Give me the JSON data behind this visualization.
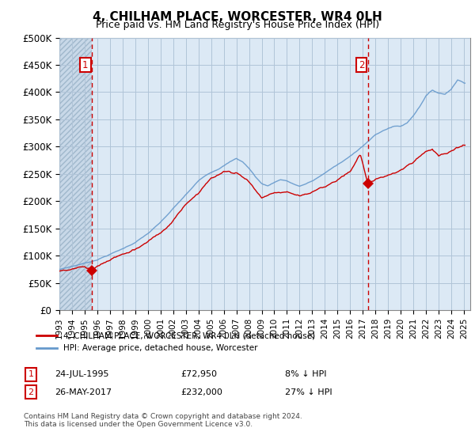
{
  "title": "4, CHILHAM PLACE, WORCESTER, WR4 0LH",
  "subtitle": "Price paid vs. HM Land Registry's House Price Index (HPI)",
  "legend_label_red": "4, CHILHAM PLACE, WORCESTER, WR4 0LH (detached house)",
  "legend_label_blue": "HPI: Average price, detached house, Worcester",
  "transaction1_date": "24-JUL-1995",
  "transaction1_price": "£72,950",
  "transaction1_hpi": "8% ↓ HPI",
  "transaction2_date": "26-MAY-2017",
  "transaction2_price": "£232,000",
  "transaction2_hpi": "27% ↓ HPI",
  "footer": "Contains HM Land Registry data © Crown copyright and database right 2024.\nThis data is licensed under the Open Government Licence v3.0.",
  "ylim": [
    0,
    500000
  ],
  "yticks": [
    0,
    50000,
    100000,
    150000,
    200000,
    250000,
    300000,
    350000,
    400000,
    450000,
    500000
  ],
  "background_color": "#ffffff",
  "plot_bg_color": "#dce9f5",
  "grid_color": "#b0c4d8",
  "hpi_color": "#6699cc",
  "price_color": "#cc0000",
  "vline_color": "#cc0000",
  "marker1_x": 1995.56,
  "marker1_y": 72950,
  "marker2_x": 2017.4,
  "marker2_y": 232000,
  "vline1_x": 1995.56,
  "vline2_x": 2017.4,
  "xmin": 1993,
  "xmax": 2025.5,
  "xticks": [
    1993,
    1994,
    1995,
    1996,
    1997,
    1998,
    1999,
    2000,
    2001,
    2002,
    2003,
    2004,
    2005,
    2006,
    2007,
    2008,
    2009,
    2010,
    2011,
    2012,
    2013,
    2014,
    2015,
    2016,
    2017,
    2018,
    2019,
    2020,
    2021,
    2022,
    2023,
    2024,
    2025
  ]
}
